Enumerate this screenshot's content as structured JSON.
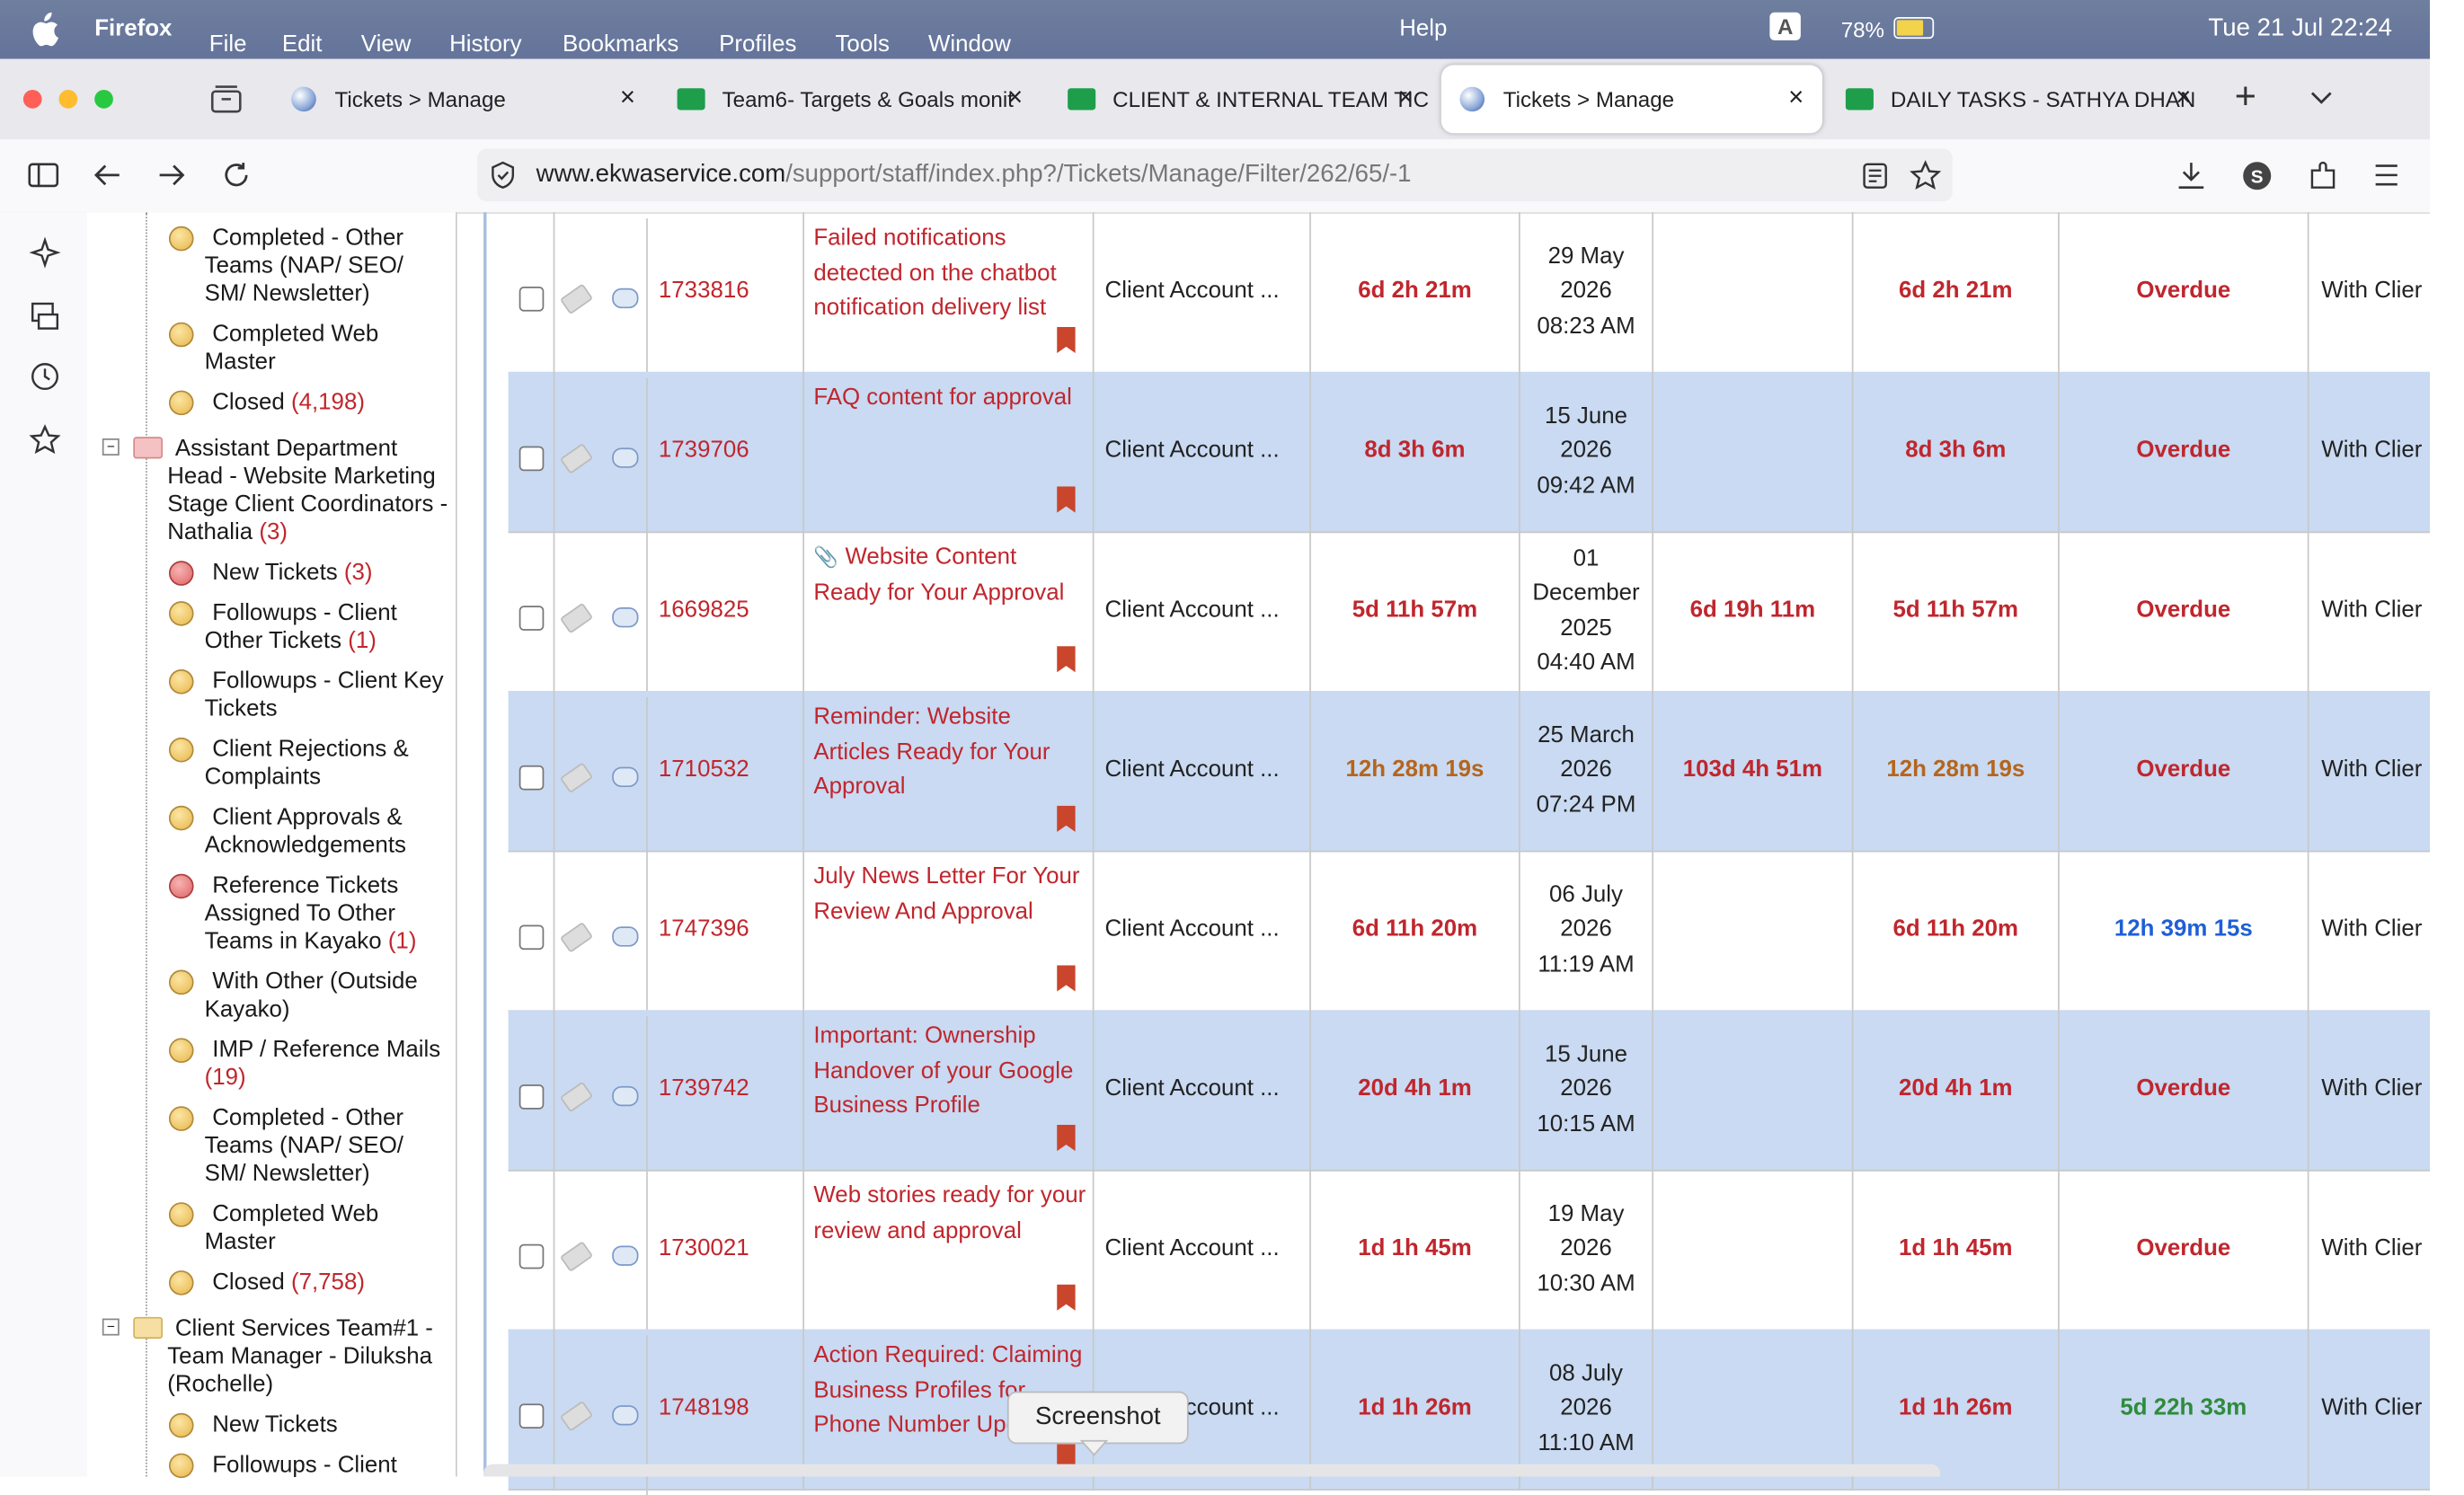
{
  "menubar": {
    "app": "Firefox",
    "menus": [
      "File",
      "Edit",
      "View",
      "History",
      "Bookmarks",
      "Profiles",
      "Tools",
      "Window"
    ],
    "help": "Help",
    "input": "A",
    "battery": "78%",
    "datetime": "Tue 21 Jul  22:24"
  },
  "tabs": [
    {
      "title": "Tickets > Manage",
      "icon": "globe",
      "active": false
    },
    {
      "title": "Team6- Targets & Goals monit",
      "icon": "sheet",
      "active": false
    },
    {
      "title": "CLIENT & INTERNAL TEAM TIC",
      "icon": "sheet",
      "active": false
    },
    {
      "title": "Tickets > Manage",
      "icon": "globe",
      "active": true
    },
    {
      "title": "DAILY TASKS - SATHYA DHAN",
      "icon": "sheet",
      "active": false
    }
  ],
  "address": {
    "host": "www.ekwaservice.com",
    "path": "/support/staff/index.php?/Tickets/Manage/Filter/262/65/-1"
  },
  "sidebar": [
    {
      "label": "Completed - Other Teams (NAP/ SEO/ SM/ Newsletter)",
      "count": null,
      "kind": "yellow"
    },
    {
      "label": "Completed Web Master",
      "count": null,
      "kind": "yellow"
    },
    {
      "label": "Closed",
      "count": "(4,198)",
      "kind": "yellow"
    },
    {
      "label": "Assistant Department Head - Website Marketing Stage Client Coordinators - Nathalia",
      "count": "(3)",
      "kind": "group-red"
    },
    {
      "label": "New Tickets",
      "count": "(3)",
      "kind": "red"
    },
    {
      "label": "Followups - Client Other Tickets",
      "count": "(1)",
      "kind": "yellow"
    },
    {
      "label": "Followups - Client Key Tickets",
      "count": null,
      "kind": "yellow"
    },
    {
      "label": "Client Rejections & Complaints",
      "count": null,
      "kind": "yellow"
    },
    {
      "label": "Client Approvals & Acknowledgements",
      "count": null,
      "kind": "yellow"
    },
    {
      "label": "Reference Tickets Assigned To Other Teams in Kayako",
      "count": "(1)",
      "kind": "red"
    },
    {
      "label": "With Other (Outside Kayako)",
      "count": null,
      "kind": "yellow"
    },
    {
      "label": "IMP / Reference Mails",
      "count": "(19)",
      "kind": "yellow"
    },
    {
      "label": "Completed - Other Teams (NAP/ SEO/ SM/ Newsletter)",
      "count": null,
      "kind": "yellow"
    },
    {
      "label": "Completed Web Master",
      "count": null,
      "kind": "yellow"
    },
    {
      "label": "Closed",
      "count": "(7,758)",
      "kind": "yellow"
    },
    {
      "label": "Client Services Team#1 - Team Manager - Diluksha (Rochelle)",
      "count": null,
      "kind": "group-yellow"
    },
    {
      "label": "New Tickets",
      "count": null,
      "kind": "yellow"
    },
    {
      "label": "Followups - Client",
      "count": null,
      "kind": "yellow"
    }
  ],
  "tickets": [
    {
      "id": "1733816",
      "subject": "Failed notifications detected on the chatbot notification delivery list",
      "attachment": false,
      "department": "Client Account ...",
      "reply_due": {
        "text": "6d 2h 21m",
        "color": "red"
      },
      "date": [
        "29 May",
        "2026",
        "08:23 AM"
      ],
      "resolution": null,
      "due": {
        "text": "6d 2h 21m",
        "color": "red"
      },
      "status": {
        "text": "Overdue",
        "color": "red"
      },
      "owner": "With Clier"
    },
    {
      "id": "1739706",
      "subject": "FAQ content for approval",
      "attachment": false,
      "department": "Client Account ...",
      "reply_due": {
        "text": "8d 3h 6m",
        "color": "red"
      },
      "date": [
        "15 June",
        "2026",
        "09:42 AM"
      ],
      "resolution": null,
      "due": {
        "text": "8d 3h 6m",
        "color": "red"
      },
      "status": {
        "text": "Overdue",
        "color": "red"
      },
      "owner": "With Clier"
    },
    {
      "id": "1669825",
      "subject": "Website Content Ready for Your Approval",
      "attachment": true,
      "department": "Client Account ...",
      "reply_due": {
        "text": "5d 11h 57m",
        "color": "red"
      },
      "date": [
        "01",
        "December",
        "2025",
        "04:40 AM"
      ],
      "resolution": {
        "text": "6d 19h 11m",
        "color": "red"
      },
      "due": {
        "text": "5d 11h 57m",
        "color": "red"
      },
      "status": {
        "text": "Overdue",
        "color": "red"
      },
      "owner": "With Clier"
    },
    {
      "id": "1710532",
      "subject": "Reminder: Website Articles Ready for Your Approval",
      "attachment": false,
      "department": "Client Account ...",
      "reply_due": {
        "text": "12h 28m 19s",
        "color": "orange"
      },
      "date": [
        "25 March",
        "2026",
        "07:24 PM"
      ],
      "resolution": {
        "text": "103d 4h 51m",
        "color": "red"
      },
      "due": {
        "text": "12h 28m 19s",
        "color": "orange"
      },
      "status": {
        "text": "Overdue",
        "color": "red"
      },
      "owner": "With Clier"
    },
    {
      "id": "1747396",
      "subject": "July News Letter For Your Review And Approval",
      "attachment": false,
      "department": "Client Account ...",
      "reply_due": {
        "text": "6d 11h 20m",
        "color": "red"
      },
      "date": [
        "06 July",
        "2026",
        "11:19 AM"
      ],
      "resolution": null,
      "due": {
        "text": "6d 11h 20m",
        "color": "red"
      },
      "status": {
        "text": "12h 39m 15s",
        "color": "blue"
      },
      "owner": "With Clier"
    },
    {
      "id": "1739742",
      "subject": "Important: Ownership Handover of your Google Business Profile",
      "attachment": false,
      "department": "Client Account ...",
      "reply_due": {
        "text": "20d 4h 1m",
        "color": "red"
      },
      "date": [
        "15 June",
        "2026",
        "10:15 AM"
      ],
      "resolution": null,
      "due": {
        "text": "20d 4h 1m",
        "color": "red"
      },
      "status": {
        "text": "Overdue",
        "color": "red"
      },
      "owner": "With Clier"
    },
    {
      "id": "1730021",
      "subject": "Web stories ready for your review and approval",
      "attachment": false,
      "department": "Client Account ...",
      "reply_due": {
        "text": "1d 1h 45m",
        "color": "red"
      },
      "date": [
        "19 May",
        "2026",
        "10:30 AM"
      ],
      "resolution": null,
      "due": {
        "text": "1d 1h 45m",
        "color": "red"
      },
      "status": {
        "text": "Overdue",
        "color": "red"
      },
      "owner": "With Clier"
    },
    {
      "id": "1748198",
      "subject": "Action Required: Claiming Business Profiles for Phone Number Update",
      "attachment": false,
      "department": "Client Account ...",
      "reply_due": {
        "text": "1d 1h 26m",
        "color": "red"
      },
      "date": [
        "08 July",
        "2026",
        "11:10 AM"
      ],
      "resolution": null,
      "due": {
        "text": "1d 1h 26m",
        "color": "red"
      },
      "status": {
        "text": "5d 22h 33m",
        "color": "green"
      },
      "owner": "With Clier"
    }
  ],
  "tooltip": "Screenshot"
}
